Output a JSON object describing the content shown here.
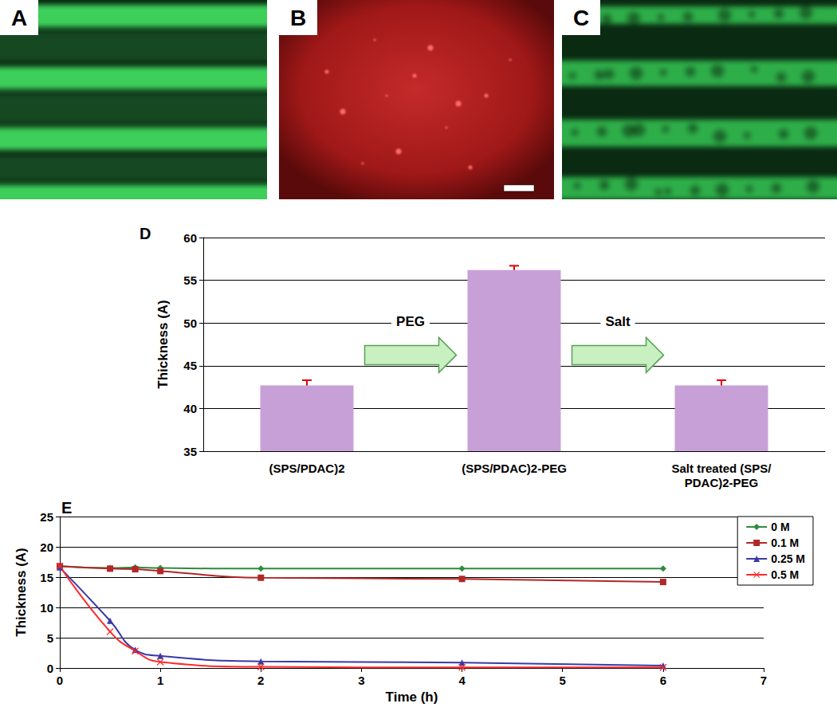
{
  "image_panels": [
    {
      "label": "A"
    },
    {
      "label": "B"
    },
    {
      "label": "C"
    }
  ],
  "chart_data": [
    {
      "type": "bar",
      "title": "D",
      "categories": [
        "(SPS/PDAC)2",
        "(SPS/PDAC)2-PEG",
        "Salt treated (SPS/PDAC)2-PEG"
      ],
      "values": [
        42.7,
        56.2,
        42.7
      ],
      "errors": [
        0.6,
        0.5,
        0.6
      ],
      "color": "#c8a0d8",
      "ylabel": "Thickness (A)",
      "ylim": [
        35,
        60
      ],
      "yticks": [
        35,
        40,
        45,
        50,
        55,
        60
      ],
      "grid": true,
      "annotations": [
        "PEG",
        "Salt"
      ]
    },
    {
      "type": "line",
      "title": "E",
      "x": [
        0,
        0.5,
        0.75,
        1,
        2,
        4,
        6
      ],
      "xlabel": "Time (h)",
      "ylabel": "Thickness (A)",
      "xlim": [
        0,
        7
      ],
      "xticks": [
        0,
        1,
        2,
        3,
        4,
        5,
        6,
        7
      ],
      "ylim": [
        0,
        25
      ],
      "yticks": [
        0,
        5,
        10,
        15,
        20,
        25
      ],
      "grid": true,
      "legend": "upper right",
      "series": [
        {
          "name": "0 M",
          "color": "#2e8b3e",
          "marker": "diamond",
          "values": [
            16.8,
            16.5,
            16.6,
            16.5,
            16.4,
            16.4,
            16.4
          ]
        },
        {
          "name": "0.1 M",
          "color": "#b02828",
          "marker": "square",
          "values": [
            16.8,
            16.4,
            16.3,
            16.0,
            14.9,
            14.7,
            14.2
          ]
        },
        {
          "name": "0.25 M",
          "color": "#3a3aa8",
          "marker": "triangle",
          "values": [
            16.6,
            7.8,
            3.0,
            2.0,
            1.1,
            0.9,
            0.4
          ]
        },
        {
          "name": "0.5 M",
          "color": "#ff2a2a",
          "marker": "x",
          "values": [
            16.8,
            6.0,
            2.8,
            1.0,
            0.2,
            0.1,
            0.1
          ]
        }
      ]
    }
  ]
}
